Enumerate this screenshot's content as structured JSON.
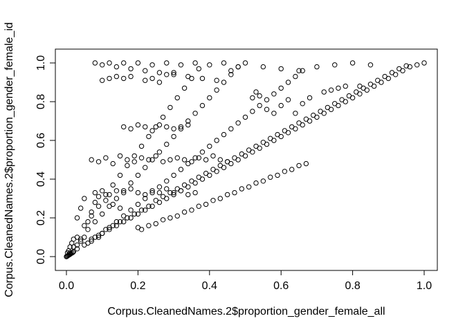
{
  "chart_data": {
    "type": "scatter",
    "title": "",
    "xlabel": "Corpus.CleanedNames.2$proportion_gender_female_all",
    "ylabel": "Corpus.CleanedNames.2$proportion_gender_female_id",
    "xlim": [
      0,
      1
    ],
    "ylim": [
      0,
      1
    ],
    "grid": false,
    "legend": "none",
    "x_ticks": [
      "0.0",
      "0.2",
      "0.4",
      "0.6",
      "0.8",
      "1.0"
    ],
    "y_ticks": [
      "0.0",
      "0.2",
      "0.4",
      "0.6",
      "0.8",
      "1.0"
    ],
    "point_style": "open-circle",
    "point_color": "#000000",
    "points": [
      {
        "x": 0.0,
        "y": 0.0
      },
      {
        "x": 0.002,
        "y": 0.002
      },
      {
        "x": 0.004,
        "y": 0.005
      },
      {
        "x": 0.006,
        "y": 0.008
      },
      {
        "x": 0.008,
        "y": 0.01
      },
      {
        "x": 0.01,
        "y": 0.012
      },
      {
        "x": 0.012,
        "y": 0.015
      },
      {
        "x": 0.015,
        "y": 0.018
      },
      {
        "x": 0.018,
        "y": 0.022
      },
      {
        "x": 0.02,
        "y": 0.026
      },
      {
        "x": 0.003,
        "y": 0.02
      },
      {
        "x": 0.006,
        "y": 0.03
      },
      {
        "x": 0.01,
        "y": 0.05
      },
      {
        "x": 0.015,
        "y": 0.07
      },
      {
        "x": 0.02,
        "y": 0.09
      },
      {
        "x": 0.03,
        "y": 0.06
      },
      {
        "x": 0.04,
        "y": 0.08
      },
      {
        "x": 0.05,
        "y": 0.1
      },
      {
        "x": 0.06,
        "y": 0.07
      },
      {
        "x": 0.07,
        "y": 0.09
      },
      {
        "x": 0.08,
        "y": 0.1
      },
      {
        "x": 0.09,
        "y": 0.11
      },
      {
        "x": 0.1,
        "y": 0.12
      },
      {
        "x": 0.12,
        "y": 0.14
      },
      {
        "x": 0.14,
        "y": 0.16
      },
      {
        "x": 0.16,
        "y": 0.18
      },
      {
        "x": 0.18,
        "y": 0.2
      },
      {
        "x": 0.2,
        "y": 0.22
      },
      {
        "x": 0.22,
        "y": 0.24
      },
      {
        "x": 0.24,
        "y": 0.26
      },
      {
        "x": 0.26,
        "y": 0.28
      },
      {
        "x": 0.28,
        "y": 0.3
      },
      {
        "x": 0.3,
        "y": 0.32
      },
      {
        "x": 0.32,
        "y": 0.34
      },
      {
        "x": 0.34,
        "y": 0.36
      },
      {
        "x": 0.36,
        "y": 0.38
      },
      {
        "x": 0.38,
        "y": 0.4
      },
      {
        "x": 0.4,
        "y": 0.42
      },
      {
        "x": 0.42,
        "y": 0.44
      },
      {
        "x": 0.44,
        "y": 0.46
      },
      {
        "x": 0.46,
        "y": 0.48
      },
      {
        "x": 0.48,
        "y": 0.5
      },
      {
        "x": 0.5,
        "y": 0.52
      },
      {
        "x": 0.52,
        "y": 0.54
      },
      {
        "x": 0.54,
        "y": 0.56
      },
      {
        "x": 0.56,
        "y": 0.58
      },
      {
        "x": 0.58,
        "y": 0.6
      },
      {
        "x": 0.6,
        "y": 0.62
      },
      {
        "x": 0.62,
        "y": 0.64
      },
      {
        "x": 0.64,
        "y": 0.66
      },
      {
        "x": 0.66,
        "y": 0.68
      },
      {
        "x": 0.68,
        "y": 0.7
      },
      {
        "x": 0.7,
        "y": 0.72
      },
      {
        "x": 0.72,
        "y": 0.74
      },
      {
        "x": 0.74,
        "y": 0.76
      },
      {
        "x": 0.76,
        "y": 0.78
      },
      {
        "x": 0.78,
        "y": 0.8
      },
      {
        "x": 0.8,
        "y": 0.82
      },
      {
        "x": 0.82,
        "y": 0.84
      },
      {
        "x": 0.84,
        "y": 0.86
      },
      {
        "x": 0.86,
        "y": 0.88
      },
      {
        "x": 0.88,
        "y": 0.9
      },
      {
        "x": 0.9,
        "y": 0.92
      },
      {
        "x": 0.92,
        "y": 0.94
      },
      {
        "x": 0.94,
        "y": 0.96
      },
      {
        "x": 0.96,
        "y": 0.98
      },
      {
        "x": 0.98,
        "y": 0.99
      },
      {
        "x": 1.0,
        "y": 1.0
      },
      {
        "x": 0.01,
        "y": 0.02
      },
      {
        "x": 0.03,
        "y": 0.04
      },
      {
        "x": 0.05,
        "y": 0.06
      },
      {
        "x": 0.07,
        "y": 0.08
      },
      {
        "x": 0.09,
        "y": 0.1
      },
      {
        "x": 0.11,
        "y": 0.14
      },
      {
        "x": 0.13,
        "y": 0.16
      },
      {
        "x": 0.15,
        "y": 0.18
      },
      {
        "x": 0.17,
        "y": 0.2
      },
      {
        "x": 0.19,
        "y": 0.22
      },
      {
        "x": 0.21,
        "y": 0.24
      },
      {
        "x": 0.23,
        "y": 0.26
      },
      {
        "x": 0.25,
        "y": 0.29
      },
      {
        "x": 0.27,
        "y": 0.31
      },
      {
        "x": 0.29,
        "y": 0.33
      },
      {
        "x": 0.31,
        "y": 0.35
      },
      {
        "x": 0.33,
        "y": 0.37
      },
      {
        "x": 0.35,
        "y": 0.39
      },
      {
        "x": 0.37,
        "y": 0.41
      },
      {
        "x": 0.39,
        "y": 0.43
      },
      {
        "x": 0.41,
        "y": 0.45
      },
      {
        "x": 0.43,
        "y": 0.47
      },
      {
        "x": 0.45,
        "y": 0.49
      },
      {
        "x": 0.47,
        "y": 0.51
      },
      {
        "x": 0.49,
        "y": 0.53
      },
      {
        "x": 0.51,
        "y": 0.55
      },
      {
        "x": 0.53,
        "y": 0.57
      },
      {
        "x": 0.55,
        "y": 0.59
      },
      {
        "x": 0.57,
        "y": 0.61
      },
      {
        "x": 0.59,
        "y": 0.63
      },
      {
        "x": 0.61,
        "y": 0.65
      },
      {
        "x": 0.63,
        "y": 0.67
      },
      {
        "x": 0.65,
        "y": 0.69
      },
      {
        "x": 0.67,
        "y": 0.71
      },
      {
        "x": 0.69,
        "y": 0.73
      },
      {
        "x": 0.71,
        "y": 0.75
      },
      {
        "x": 0.73,
        "y": 0.77
      },
      {
        "x": 0.75,
        "y": 0.79
      },
      {
        "x": 0.77,
        "y": 0.81
      },
      {
        "x": 0.79,
        "y": 0.83
      },
      {
        "x": 0.81,
        "y": 0.85
      },
      {
        "x": 0.83,
        "y": 0.87
      },
      {
        "x": 0.85,
        "y": 0.89
      },
      {
        "x": 0.87,
        "y": 0.91
      },
      {
        "x": 0.89,
        "y": 0.93
      },
      {
        "x": 0.91,
        "y": 0.95
      },
      {
        "x": 0.93,
        "y": 0.97
      },
      {
        "x": 0.95,
        "y": 0.985
      },
      {
        "x": 0.02,
        "y": 0.05
      },
      {
        "x": 0.04,
        "y": 0.09
      },
      {
        "x": 0.06,
        "y": 0.14
      },
      {
        "x": 0.08,
        "y": 0.18
      },
      {
        "x": 0.1,
        "y": 0.22
      },
      {
        "x": 0.12,
        "y": 0.26
      },
      {
        "x": 0.14,
        "y": 0.3
      },
      {
        "x": 0.16,
        "y": 0.34
      },
      {
        "x": 0.18,
        "y": 0.38
      },
      {
        "x": 0.2,
        "y": 0.42
      },
      {
        "x": 0.22,
        "y": 0.46
      },
      {
        "x": 0.24,
        "y": 0.5
      },
      {
        "x": 0.26,
        "y": 0.54
      },
      {
        "x": 0.28,
        "y": 0.58
      },
      {
        "x": 0.3,
        "y": 0.62
      },
      {
        "x": 0.32,
        "y": 0.66
      },
      {
        "x": 0.34,
        "y": 0.7
      },
      {
        "x": 0.36,
        "y": 0.74
      },
      {
        "x": 0.38,
        "y": 0.78
      },
      {
        "x": 0.4,
        "y": 0.82
      },
      {
        "x": 0.42,
        "y": 0.86
      },
      {
        "x": 0.44,
        "y": 0.9
      },
      {
        "x": 0.46,
        "y": 0.94
      },
      {
        "x": 0.48,
        "y": 0.98
      },
      {
        "x": 0.1,
        "y": 0.12
      },
      {
        "x": 0.12,
        "y": 0.15
      },
      {
        "x": 0.14,
        "y": 0.18
      },
      {
        "x": 0.16,
        "y": 0.21
      },
      {
        "x": 0.18,
        "y": 0.24
      },
      {
        "x": 0.2,
        "y": 0.27
      },
      {
        "x": 0.22,
        "y": 0.3
      },
      {
        "x": 0.24,
        "y": 0.33
      },
      {
        "x": 0.26,
        "y": 0.36
      },
      {
        "x": 0.28,
        "y": 0.39
      },
      {
        "x": 0.3,
        "y": 0.42
      },
      {
        "x": 0.32,
        "y": 0.45
      },
      {
        "x": 0.34,
        "y": 0.48
      },
      {
        "x": 0.36,
        "y": 0.51
      },
      {
        "x": 0.38,
        "y": 0.54
      },
      {
        "x": 0.4,
        "y": 0.57
      },
      {
        "x": 0.42,
        "y": 0.6
      },
      {
        "x": 0.44,
        "y": 0.63
      },
      {
        "x": 0.46,
        "y": 0.66
      },
      {
        "x": 0.48,
        "y": 0.69
      },
      {
        "x": 0.5,
        "y": 0.72
      },
      {
        "x": 0.52,
        "y": 0.75
      },
      {
        "x": 0.54,
        "y": 0.78
      },
      {
        "x": 0.56,
        "y": 0.81
      },
      {
        "x": 0.58,
        "y": 0.84
      },
      {
        "x": 0.6,
        "y": 0.87
      },
      {
        "x": 0.62,
        "y": 0.9
      },
      {
        "x": 0.64,
        "y": 0.93
      },
      {
        "x": 0.66,
        "y": 0.96
      },
      {
        "x": 0.03,
        "y": 0.1
      },
      {
        "x": 0.05,
        "y": 0.16
      },
      {
        "x": 0.07,
        "y": 0.21
      },
      {
        "x": 0.09,
        "y": 0.26
      },
      {
        "x": 0.11,
        "y": 0.32
      },
      {
        "x": 0.13,
        "y": 0.37
      },
      {
        "x": 0.15,
        "y": 0.42
      },
      {
        "x": 0.17,
        "y": 0.47
      },
      {
        "x": 0.19,
        "y": 0.52
      },
      {
        "x": 0.21,
        "y": 0.57
      },
      {
        "x": 0.23,
        "y": 0.62
      },
      {
        "x": 0.25,
        "y": 0.67
      },
      {
        "x": 0.27,
        "y": 0.72
      },
      {
        "x": 0.29,
        "y": 0.77
      },
      {
        "x": 0.31,
        "y": 0.82
      },
      {
        "x": 0.33,
        "y": 0.87
      },
      {
        "x": 0.35,
        "y": 0.92
      },
      {
        "x": 0.37,
        "y": 0.97
      },
      {
        "x": 0.08,
        "y": 1.0
      },
      {
        "x": 0.1,
        "y": 0.99
      },
      {
        "x": 0.12,
        "y": 1.0
      },
      {
        "x": 0.14,
        "y": 0.98
      },
      {
        "x": 0.16,
        "y": 1.0
      },
      {
        "x": 0.18,
        "y": 0.97
      },
      {
        "x": 0.2,
        "y": 1.0
      },
      {
        "x": 0.22,
        "y": 0.96
      },
      {
        "x": 0.24,
        "y": 0.99
      },
      {
        "x": 0.26,
        "y": 0.95
      },
      {
        "x": 0.28,
        "y": 1.0
      },
      {
        "x": 0.3,
        "y": 0.94
      },
      {
        "x": 0.32,
        "y": 0.99
      },
      {
        "x": 0.34,
        "y": 0.93
      },
      {
        "x": 0.36,
        "y": 1.0
      },
      {
        "x": 0.38,
        "y": 0.92
      },
      {
        "x": 0.4,
        "y": 0.99
      },
      {
        "x": 0.42,
        "y": 0.91
      },
      {
        "x": 0.44,
        "y": 1.0
      },
      {
        "x": 0.46,
        "y": 0.96
      },
      {
        "x": 0.48,
        "y": 0.98
      },
      {
        "x": 0.5,
        "y": 1.0
      },
      {
        "x": 0.55,
        "y": 0.98
      },
      {
        "x": 0.6,
        "y": 0.97
      },
      {
        "x": 0.65,
        "y": 0.96
      },
      {
        "x": 0.7,
        "y": 0.98
      },
      {
        "x": 0.75,
        "y": 0.99
      },
      {
        "x": 0.8,
        "y": 1.0
      },
      {
        "x": 0.85,
        "y": 0.99
      },
      {
        "x": 0.07,
        "y": 0.5
      },
      {
        "x": 0.09,
        "y": 0.49
      },
      {
        "x": 0.11,
        "y": 0.51
      },
      {
        "x": 0.13,
        "y": 0.48
      },
      {
        "x": 0.15,
        "y": 0.52
      },
      {
        "x": 0.17,
        "y": 0.5
      },
      {
        "x": 0.19,
        "y": 0.49
      },
      {
        "x": 0.21,
        "y": 0.51
      },
      {
        "x": 0.23,
        "y": 0.5
      },
      {
        "x": 0.25,
        "y": 0.52
      },
      {
        "x": 0.27,
        "y": 0.49
      },
      {
        "x": 0.29,
        "y": 0.5
      },
      {
        "x": 0.31,
        "y": 0.51
      },
      {
        "x": 0.33,
        "y": 0.5
      },
      {
        "x": 0.35,
        "y": 0.49
      },
      {
        "x": 0.37,
        "y": 0.51
      },
      {
        "x": 0.39,
        "y": 0.5
      },
      {
        "x": 0.41,
        "y": 0.52
      },
      {
        "x": 0.43,
        "y": 0.5
      },
      {
        "x": 0.45,
        "y": 0.49
      },
      {
        "x": 0.08,
        "y": 0.33
      },
      {
        "x": 0.1,
        "y": 0.34
      },
      {
        "x": 0.12,
        "y": 0.32
      },
      {
        "x": 0.14,
        "y": 0.34
      },
      {
        "x": 0.16,
        "y": 0.33
      },
      {
        "x": 0.18,
        "y": 0.35
      },
      {
        "x": 0.2,
        "y": 0.33
      },
      {
        "x": 0.22,
        "y": 0.32
      },
      {
        "x": 0.24,
        "y": 0.34
      },
      {
        "x": 0.26,
        "y": 0.33
      },
      {
        "x": 0.28,
        "y": 0.35
      },
      {
        "x": 0.3,
        "y": 0.33
      },
      {
        "x": 0.32,
        "y": 0.34
      },
      {
        "x": 0.34,
        "y": 0.32
      },
      {
        "x": 0.36,
        "y": 0.33
      },
      {
        "x": 0.16,
        "y": 0.67
      },
      {
        "x": 0.18,
        "y": 0.66
      },
      {
        "x": 0.2,
        "y": 0.68
      },
      {
        "x": 0.22,
        "y": 0.67
      },
      {
        "x": 0.24,
        "y": 0.65
      },
      {
        "x": 0.26,
        "y": 0.68
      },
      {
        "x": 0.28,
        "y": 0.67
      },
      {
        "x": 0.3,
        "y": 0.66
      },
      {
        "x": 0.32,
        "y": 0.67
      },
      {
        "x": 0.34,
        "y": 0.68
      },
      {
        "x": 0.1,
        "y": 0.91
      },
      {
        "x": 0.12,
        "y": 0.92
      },
      {
        "x": 0.14,
        "y": 0.93
      },
      {
        "x": 0.16,
        "y": 0.92
      },
      {
        "x": 0.18,
        "y": 0.93
      },
      {
        "x": 0.22,
        "y": 0.91
      },
      {
        "x": 0.24,
        "y": 0.92
      },
      {
        "x": 0.26,
        "y": 0.9
      },
      {
        "x": 0.28,
        "y": 0.94
      },
      {
        "x": 0.3,
        "y": 0.95
      },
      {
        "x": 0.2,
        "y": 0.15
      },
      {
        "x": 0.21,
        "y": 0.14
      },
      {
        "x": 0.23,
        "y": 0.16
      },
      {
        "x": 0.25,
        "y": 0.17
      },
      {
        "x": 0.27,
        "y": 0.19
      },
      {
        "x": 0.29,
        "y": 0.2
      },
      {
        "x": 0.31,
        "y": 0.21
      },
      {
        "x": 0.33,
        "y": 0.23
      },
      {
        "x": 0.35,
        "y": 0.24
      },
      {
        "x": 0.37,
        "y": 0.26
      },
      {
        "x": 0.39,
        "y": 0.27
      },
      {
        "x": 0.41,
        "y": 0.29
      },
      {
        "x": 0.43,
        "y": 0.3
      },
      {
        "x": 0.45,
        "y": 0.32
      },
      {
        "x": 0.47,
        "y": 0.33
      },
      {
        "x": 0.49,
        "y": 0.35
      },
      {
        "x": 0.51,
        "y": 0.36
      },
      {
        "x": 0.53,
        "y": 0.38
      },
      {
        "x": 0.55,
        "y": 0.39
      },
      {
        "x": 0.57,
        "y": 0.41
      },
      {
        "x": 0.59,
        "y": 0.42
      },
      {
        "x": 0.61,
        "y": 0.44
      },
      {
        "x": 0.63,
        "y": 0.45
      },
      {
        "x": 0.65,
        "y": 0.47
      },
      {
        "x": 0.67,
        "y": 0.48
      },
      {
        "x": 0.52,
        "y": 0.82
      },
      {
        "x": 0.53,
        "y": 0.85
      },
      {
        "x": 0.54,
        "y": 0.83
      },
      {
        "x": 0.56,
        "y": 0.76
      },
      {
        "x": 0.58,
        "y": 0.74
      },
      {
        "x": 0.6,
        "y": 0.78
      },
      {
        "x": 0.62,
        "y": 0.81
      },
      {
        "x": 0.64,
        "y": 0.74
      },
      {
        "x": 0.66,
        "y": 0.79
      },
      {
        "x": 0.68,
        "y": 0.82
      },
      {
        "x": 0.72,
        "y": 0.85
      },
      {
        "x": 0.74,
        "y": 0.86
      },
      {
        "x": 0.76,
        "y": 0.87
      },
      {
        "x": 0.78,
        "y": 0.88
      },
      {
        "x": 0.82,
        "y": 0.88
      },
      {
        "x": 0.03,
        "y": 0.2
      },
      {
        "x": 0.04,
        "y": 0.25
      },
      {
        "x": 0.05,
        "y": 0.3
      },
      {
        "x": 0.06,
        "y": 0.18
      },
      {
        "x": 0.07,
        "y": 0.23
      },
      {
        "x": 0.08,
        "y": 0.28
      },
      {
        "x": 0.09,
        "y": 0.31
      },
      {
        "x": 0.11,
        "y": 0.29
      },
      {
        "x": 0.13,
        "y": 0.27
      },
      {
        "x": 0.15,
        "y": 0.25
      }
    ]
  }
}
